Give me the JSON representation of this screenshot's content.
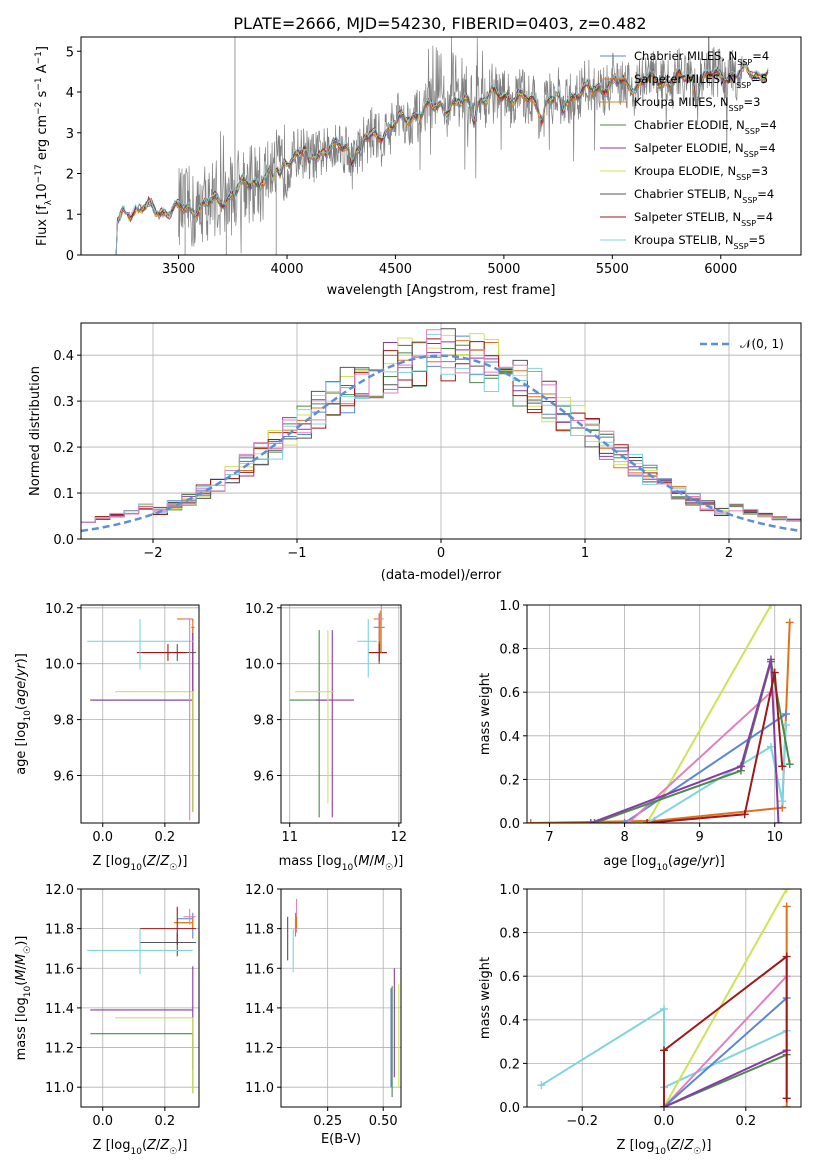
{
  "figure": {
    "title": "PLATE=2666, MJD=54230, FIBERID=0403, z=0.482"
  },
  "colors": {
    "Chabrier MILES": "#5b86d6",
    "Salpeter MILES": "#e07020",
    "Kroupa MILES": "#e08010",
    "Chabrier ELODIE": "#4a8a4a",
    "Salpeter ELODIE": "#8a3aa8",
    "Kroupa ELODIE": "#cde35a",
    "Chabrier STELIB": "#555555",
    "Salpeter STELIB": "#a01818",
    "Kroupa STELIB": "#7fd4e0",
    "pink": "#e080c0",
    "data": "#808080",
    "gauss": "#5b8fd6"
  },
  "chart_data": [
    {
      "id": "spectrum",
      "type": "line",
      "xlabel": "wavelength [Angstrom, rest frame]",
      "ylabel": "Flux [f_λ 10^-17 erg cm^-2 s^-1 A^-1]",
      "xlim": [
        3050,
        6370
      ],
      "ylim": [
        0,
        5.35
      ],
      "xticks": [
        3500,
        4000,
        4500,
        5000,
        5500,
        6000
      ],
      "yticks": [
        0,
        1,
        2,
        3,
        4,
        5
      ],
      "grid": false,
      "legend_position": "top-right",
      "legend": [
        {
          "label": "Chabrier MILES, N",
          "sub": "SSP",
          "suffix": "=4",
          "color": "#5b86d6"
        },
        {
          "label": "Salpeter MILES, N",
          "sub": "SSP",
          "suffix": "=5",
          "color": "#e07020"
        },
        {
          "label": "Kroupa MILES, N",
          "sub": "SSP",
          "suffix": "=3",
          "color": "#e08010"
        },
        {
          "label": "Chabrier ELODIE, N",
          "sub": "SSP",
          "suffix": "=4",
          "color": "#4a8a4a"
        },
        {
          "label": "Salpeter ELODIE, N",
          "sub": "SSP",
          "suffix": "=4",
          "color": "#8a3aa8"
        },
        {
          "label": "Kroupa ELODIE, N",
          "sub": "SSP",
          "suffix": "=3",
          "color": "#cde35a"
        },
        {
          "label": "Chabrier STELIB, N",
          "sub": "SSP",
          "suffix": "=4",
          "color": "#555555"
        },
        {
          "label": "Salpeter STELIB, N",
          "sub": "SSP",
          "suffix": "=4",
          "color": "#a01818"
        },
        {
          "label": "Kroupa STELIB, N",
          "sub": "SSP",
          "suffix": "=5",
          "color": "#7fd4e0"
        }
      ],
      "continuum": {
        "x": [
          3200,
          3250,
          3300,
          3400,
          3500,
          3600,
          3700,
          3800,
          3900,
          4000,
          4100,
          4200,
          4300,
          4400,
          4500,
          4600,
          4700,
          4800,
          4900,
          5000,
          5100,
          5200,
          5300,
          5400,
          5500,
          5600,
          5700,
          5800,
          5900,
          6000,
          6100,
          6220
        ],
        "y": [
          0.6,
          1.05,
          1.15,
          1.1,
          1.1,
          1.2,
          1.35,
          1.7,
          1.9,
          2.4,
          2.5,
          2.6,
          2.7,
          2.9,
          3.2,
          3.5,
          3.65,
          3.7,
          3.8,
          3.95,
          3.8,
          3.75,
          3.9,
          4.05,
          4.2,
          4.2,
          4.3,
          4.3,
          4.35,
          4.4,
          4.45,
          4.5
        ]
      },
      "data_range": [
        3500,
        6100
      ]
    },
    {
      "id": "residuals",
      "type": "histogram",
      "xlabel": "(data-model)/error",
      "ylabel": "Normed distribution",
      "xlim": [
        -2.5,
        2.5
      ],
      "ylim": [
        0,
        0.47
      ],
      "xticks": [
        -2,
        -1,
        0,
        1,
        2
      ],
      "yticks": [
        0.0,
        0.1,
        0.2,
        0.3,
        0.4
      ],
      "grid": true,
      "bins": 50,
      "legend_position": "top-right",
      "legend": [
        {
          "label": "𝒩(0, 1)",
          "color": "#5b8fd6",
          "style": "dashed"
        }
      ]
    },
    {
      "id": "age-vs-Z",
      "type": "errorbar",
      "xlabel": "Z [log10(Z/Z☉)]",
      "ylabel": "age [log10(age/yr)]",
      "xlim": [
        -0.07,
        0.31
      ],
      "ylim": [
        9.43,
        10.21
      ],
      "xticks": [
        0.0,
        0.2
      ],
      "yticks": [
        9.6,
        9.8,
        10.0,
        10.2
      ],
      "grid": true,
      "points": [
        {
          "x": 0.29,
          "y": 10.13,
          "xerr": [
            0.005,
            0.005
          ],
          "yerr": [
            0.65,
            0.0
          ],
          "color": "#5b86d6"
        },
        {
          "x": 0.29,
          "y": 10.16,
          "xerr": [
            0.05,
            0.0
          ],
          "yerr": [
            0.68,
            0.0
          ],
          "color": "#e07020"
        },
        {
          "x": 0.29,
          "y": 10.16,
          "xerr": [
            0.05,
            0.0
          ],
          "yerr": [
            0.01,
            0.0
          ],
          "color": "#e08010"
        },
        {
          "x": 0.29,
          "y": 9.87,
          "xerr": [
            0.33,
            0.0
          ],
          "yerr": [
            0.4,
            0.0
          ],
          "color": "#4a8a4a"
        },
        {
          "x": 0.29,
          "y": 9.87,
          "xerr": [
            0.33,
            0.0
          ],
          "yerr": [
            0.4,
            0.24
          ],
          "color": "#8a3aa8"
        },
        {
          "x": 0.29,
          "y": 9.9,
          "xerr": [
            0.25,
            0.0
          ],
          "yerr": [
            0.43,
            0.0
          ],
          "color": "#cde35a"
        },
        {
          "x": 0.24,
          "y": 10.04,
          "xerr": [
            0.11,
            0.06
          ],
          "yerr": [
            0.03,
            0.03
          ],
          "color": "#555555"
        },
        {
          "x": 0.21,
          "y": 10.04,
          "xerr": [
            0.1,
            0.06
          ],
          "yerr": [
            0.03,
            0.03
          ],
          "color": "#a01818"
        },
        {
          "x": 0.12,
          "y": 10.08,
          "xerr": [
            0.17,
            0.17
          ],
          "yerr": [
            0.1,
            0.08
          ],
          "color": "#7fd4e0"
        },
        {
          "x": 0.28,
          "y": 10.16,
          "xerr": [
            0.02,
            0.01
          ],
          "yerr": [
            0.72,
            0.0
          ],
          "color": "#e080c0"
        }
      ]
    },
    {
      "id": "age-vs-mass",
      "type": "errorbar",
      "xlabel": "mass [log10(M/M☉)]",
      "ylabel": "",
      "xlim": [
        10.92,
        12.02
      ],
      "ylim": [
        9.43,
        10.21
      ],
      "xticks": [
        11,
        12
      ],
      "yticks": [
        9.6,
        9.8,
        10.0,
        10.2
      ],
      "grid": true,
      "points": [
        {
          "x": 11.82,
          "y": 10.13,
          "xerr": [
            0.05,
            0.05
          ],
          "yerr": [
            0.05,
            0.05
          ],
          "color": "#5b86d6"
        },
        {
          "x": 11.82,
          "y": 10.16,
          "xerr": [
            0.05,
            0.02
          ],
          "yerr": [
            0.12,
            0.02
          ],
          "color": "#e07020"
        },
        {
          "x": 11.83,
          "y": 10.16,
          "xerr": [
            0.02,
            0.02
          ],
          "yerr": [
            0.12,
            0.03
          ],
          "color": "#e08010"
        },
        {
          "x": 11.27,
          "y": 9.87,
          "xerr": [
            0.27,
            0.07
          ],
          "yerr": [
            0.42,
            0.25
          ],
          "color": "#4a8a4a"
        },
        {
          "x": 11.39,
          "y": 9.87,
          "xerr": [
            0.15,
            0.2
          ],
          "yerr": [
            0.42,
            0.25
          ],
          "color": "#8a3aa8"
        },
        {
          "x": 11.35,
          "y": 9.9,
          "xerr": [
            0.3,
            0.06
          ],
          "yerr": [
            0.4,
            0.22
          ],
          "color": "#cde35a"
        },
        {
          "x": 11.82,
          "y": 10.04,
          "xerr": [
            0.1,
            0.07
          ],
          "yerr": [
            0.04,
            0.04
          ],
          "color": "#555555"
        },
        {
          "x": 11.82,
          "y": 10.04,
          "xerr": [
            0.1,
            0.07
          ],
          "yerr": [
            0.03,
            0.03
          ],
          "color": "#a01818"
        },
        {
          "x": 11.72,
          "y": 10.08,
          "xerr": [
            0.1,
            0.08
          ],
          "yerr": [
            0.13,
            0.08
          ],
          "color": "#7fd4e0"
        },
        {
          "x": 11.84,
          "y": 10.16,
          "xerr": [
            0.05,
            0.02
          ],
          "yerr": [
            0.12,
            0.05
          ],
          "color": "#e080c0"
        }
      ]
    },
    {
      "id": "weight-vs-age",
      "type": "line",
      "xlabel": "age [log10(age/yr)]",
      "ylabel": "mass weight",
      "xlim": [
        6.7,
        10.35
      ],
      "ylim": [
        0,
        1.0
      ],
      "xticks": [
        7,
        8,
        9,
        10
      ],
      "yticks": [
        0.0,
        0.2,
        0.4,
        0.6,
        0.8,
        1.0
      ],
      "grid": true,
      "series": [
        {
          "color": "#cde35a",
          "x": [
            6.75,
            8.3,
            9.95
          ],
          "y": [
            0.0,
            0.0,
            1.0
          ]
        },
        {
          "color": "#e07020",
          "x": [
            6.75,
            8.4,
            10.1,
            10.2
          ],
          "y": [
            0.0,
            0.01,
            0.07,
            0.92
          ]
        },
        {
          "color": "#5b86d6",
          "x": [
            8.0,
            10.15
          ],
          "y": [
            0.0,
            0.5
          ]
        },
        {
          "color": "#e080c0",
          "x": [
            8.05,
            9.95
          ],
          "y": [
            0.0,
            0.6
          ]
        },
        {
          "color": "#7fd4e0",
          "x": [
            8.3,
            9.95,
            10.1,
            10.15
          ],
          "y": [
            0.0,
            0.35,
            0.1,
            0.45
          ]
        },
        {
          "color": "#4a8a4a",
          "x": [
            7.6,
            9.55,
            9.95,
            10.2
          ],
          "y": [
            0.0,
            0.24,
            0.74,
            0.27
          ]
        },
        {
          "color": "#8a3aa8",
          "x": [
            7.55,
            9.55,
            9.95,
            10.05
          ],
          "y": [
            0.0,
            0.26,
            0.75,
            0.0
          ]
        },
        {
          "color": "#a01818",
          "x": [
            8.3,
            9.6,
            10.0,
            10.1
          ],
          "y": [
            0.0,
            0.04,
            0.69,
            0.26
          ]
        }
      ]
    },
    {
      "id": "mass-vs-Z",
      "type": "errorbar",
      "xlabel": "Z [log10(Z/Z☉)]",
      "ylabel": "mass [log10(M/M☉)]",
      "xlim": [
        -0.07,
        0.31
      ],
      "ylim": [
        10.9,
        12.0
      ],
      "xticks": [
        0.0,
        0.2
      ],
      "yticks": [
        11.0,
        11.2,
        11.4,
        11.6,
        11.8,
        12.0
      ],
      "grid": true,
      "points": [
        {
          "x": 0.29,
          "y": 11.85,
          "xerr": [
            0.05,
            0.0
          ],
          "yerr": [
            0.1,
            0.03
          ],
          "color": "#5b86d6"
        },
        {
          "x": 0.29,
          "y": 11.83,
          "xerr": [
            0.06,
            0.0
          ],
          "yerr": [
            0.03,
            0.03
          ],
          "color": "#e07020"
        },
        {
          "x": 0.29,
          "y": 11.83,
          "xerr": [
            0.06,
            0.0
          ],
          "yerr": [
            0.02,
            0.02
          ],
          "color": "#e08010"
        },
        {
          "x": 0.29,
          "y": 11.27,
          "xerr": [
            0.33,
            0.0
          ],
          "yerr": [
            0.3,
            0.0
          ],
          "color": "#4a8a4a"
        },
        {
          "x": 0.29,
          "y": 11.39,
          "xerr": [
            0.33,
            0.0
          ],
          "yerr": [
            0.3,
            0.22
          ],
          "color": "#8a3aa8"
        },
        {
          "x": 0.29,
          "y": 11.35,
          "xerr": [
            0.25,
            0.0
          ],
          "yerr": [
            0.38,
            0.0
          ],
          "color": "#cde35a"
        },
        {
          "x": 0.24,
          "y": 11.73,
          "xerr": [
            0.12,
            0.06
          ],
          "yerr": [
            0.07,
            0.05
          ],
          "color": "#555555"
        },
        {
          "x": 0.24,
          "y": 11.8,
          "xerr": [
            0.12,
            0.06
          ],
          "yerr": [
            0.08,
            0.11
          ],
          "color": "#a01818"
        },
        {
          "x": 0.12,
          "y": 11.69,
          "xerr": [
            0.17,
            0.17
          ],
          "yerr": [
            0.12,
            0.11
          ],
          "color": "#7fd4e0"
        },
        {
          "x": 0.28,
          "y": 11.86,
          "xerr": [
            0.02,
            0.02
          ],
          "yerr": [
            0.04,
            0.04
          ],
          "color": "#e080c0"
        }
      ]
    },
    {
      "id": "mass-vs-EBV",
      "type": "errorbar",
      "xlabel": "E(B-V)",
      "ylabel": "",
      "xlim": [
        0.04,
        0.58
      ],
      "ylim": [
        10.9,
        12.0
      ],
      "xticks": [
        0.25,
        0.5
      ],
      "yticks": [
        11.0,
        11.2,
        11.4,
        11.6,
        11.8,
        12.0
      ],
      "grid": true,
      "points": [
        {
          "x": 0.11,
          "y": 11.86,
          "xerr": [
            0.0,
            0.0
          ],
          "yerr": [
            0.08,
            0.09
          ],
          "color": "#e080c0"
        },
        {
          "x": 0.11,
          "y": 11.83,
          "xerr": [
            0.0,
            0.0
          ],
          "yerr": [
            0.03,
            0.03
          ],
          "color": "#e07020"
        },
        {
          "x": 0.105,
          "y": 11.83,
          "xerr": [
            0.0,
            0.0
          ],
          "yerr": [
            0.07,
            0.05
          ],
          "color": "#e08010"
        },
        {
          "x": 0.07,
          "y": 11.76,
          "xerr": [
            0.0,
            0.0
          ],
          "yerr": [
            0.12,
            0.1
          ],
          "color": "#555555"
        },
        {
          "x": 0.095,
          "y": 11.7,
          "xerr": [
            0.0,
            0.0
          ],
          "yerr": [
            0.12,
            0.1
          ],
          "color": "#7fd4e0"
        },
        {
          "x": 0.54,
          "y": 11.23,
          "xerr": [
            0.0,
            0.0
          ],
          "yerr": [
            0.28,
            0.28
          ],
          "color": "#4a8a4a"
        },
        {
          "x": 0.55,
          "y": 11.3,
          "xerr": [
            0.0,
            0.0
          ],
          "yerr": [
            0.25,
            0.3
          ],
          "color": "#8a3aa8"
        },
        {
          "x": 0.57,
          "y": 11.28,
          "xerr": [
            0.0,
            0.0
          ],
          "yerr": [
            0.28,
            0.24
          ],
          "color": "#cde35a"
        },
        {
          "x": 0.535,
          "y": 11.25,
          "xerr": [
            0.0,
            0.0
          ],
          "yerr": [
            0.25,
            0.25
          ],
          "color": "#5b86d6"
        }
      ]
    },
    {
      "id": "weight-vs-Z",
      "type": "line",
      "xlabel": "Z [log10(Z/Z☉)]",
      "ylabel": "mass weight",
      "xlim": [
        -0.335,
        0.335
      ],
      "ylim": [
        0,
        1.0
      ],
      "xticks": [
        -0.2,
        0.0,
        0.2
      ],
      "yticks": [
        0.0,
        0.2,
        0.4,
        0.6,
        0.8,
        1.0
      ],
      "grid": true,
      "series": [
        {
          "color": "#7fd4e0",
          "x": [
            -0.3,
            0.0,
            0.0,
            0.3
          ],
          "y": [
            0.1,
            0.45,
            0.09,
            0.35
          ]
        },
        {
          "color": "#cde35a",
          "x": [
            0.0,
            0.3
          ],
          "y": [
            0.0,
            1.0
          ]
        },
        {
          "color": "#e080c0",
          "x": [
            0.0,
            0.3
          ],
          "y": [
            0.0,
            0.6
          ]
        },
        {
          "color": "#5b86d6",
          "x": [
            0.0,
            0.3
          ],
          "y": [
            0.0,
            0.5
          ]
        },
        {
          "color": "#e07020",
          "x": [
            0.3,
            0.3
          ],
          "y": [
            0.0,
            0.92
          ]
        },
        {
          "color": "#4a8a4a",
          "x": [
            0.0,
            0.3
          ],
          "y": [
            0.0,
            0.24
          ]
        },
        {
          "color": "#8a3aa8",
          "x": [
            0.0,
            0.3
          ],
          "y": [
            0.0,
            0.26
          ]
        },
        {
          "color": "#a01818",
          "x": [
            0.0,
            0.0,
            0.3,
            0.3
          ],
          "y": [
            0.0,
            0.26,
            0.69,
            0.04
          ]
        }
      ]
    }
  ]
}
